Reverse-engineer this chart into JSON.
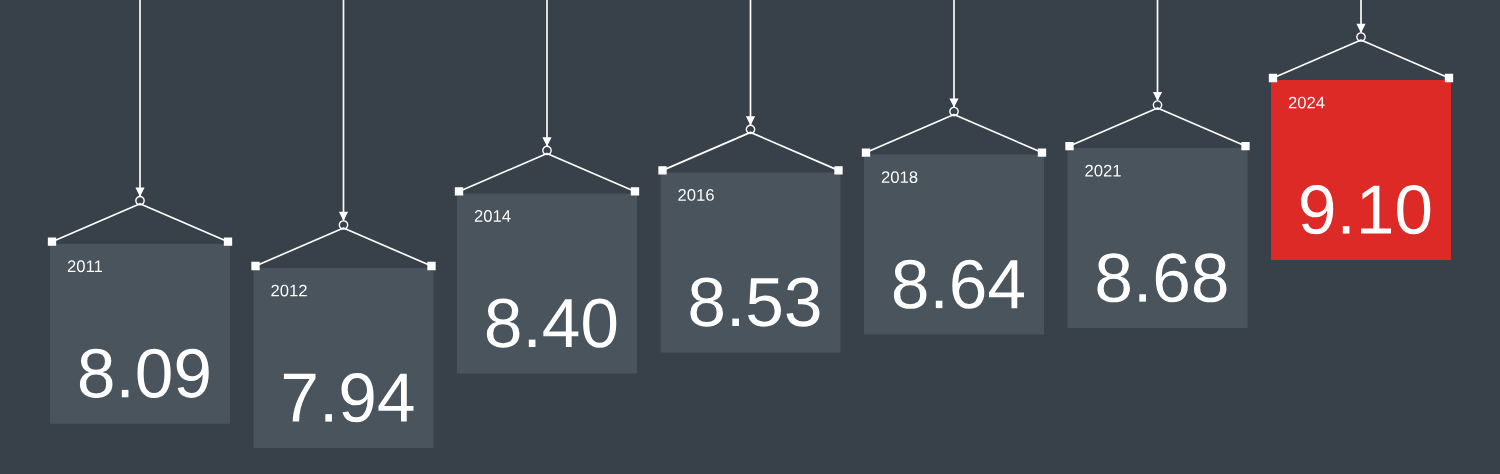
{
  "chart_data": {
    "type": "other",
    "categories": [
      "2011",
      "2012",
      "2014",
      "2016",
      "2018",
      "2021",
      "2024"
    ],
    "values": [
      8.09,
      7.94,
      8.4,
      8.53,
      8.64,
      8.68,
      9.1
    ],
    "colors": [
      "#4a545c",
      "#4a545c",
      "#4a545c",
      "#4a545c",
      "#4a545c",
      "#4a545c",
      "#de2a27"
    ],
    "value_labels": [
      "8.09",
      "7.94",
      "8.40",
      "8.53",
      "8.64",
      "8.68",
      "9.10"
    ]
  }
}
